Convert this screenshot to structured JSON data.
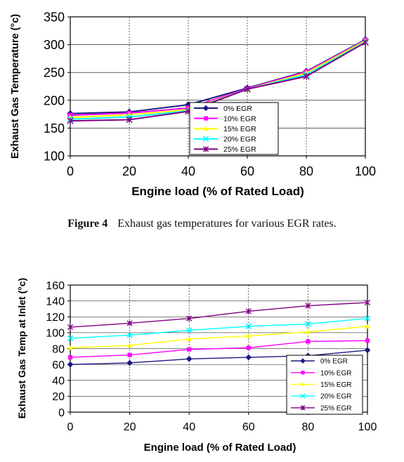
{
  "figure_caption": {
    "label": "Figure 4",
    "text": "Exhaust gas temperatures for various EGR rates."
  },
  "chart_data": [
    {
      "type": "line",
      "xlabel": "Engine load (% of Rated Load)",
      "ylabel": "Exhaust Gas Temperature (°c)",
      "xlim": [
        0,
        100
      ],
      "ylim": [
        100,
        350
      ],
      "xticks": [
        0,
        20,
        40,
        60,
        80,
        100
      ],
      "yticks": [
        100,
        150,
        200,
        250,
        300,
        350
      ],
      "grid": true,
      "legend_position": "center-right",
      "x": [
        0,
        20,
        40,
        60,
        80,
        100
      ],
      "series": [
        {
          "name": "0% EGR",
          "values": [
            176,
            179,
            192,
            222,
            252,
            309
          ],
          "color": "#1a1a80",
          "marker": "diamond"
        },
        {
          "name": "10% EGR",
          "values": [
            173,
            177,
            186,
            221,
            251,
            308
          ],
          "color": "#ff00ff",
          "marker": "square"
        },
        {
          "name": "15% EGR",
          "values": [
            169,
            174,
            183,
            220,
            249,
            307
          ],
          "color": "#ffff00",
          "marker": "triangle"
        },
        {
          "name": "20% EGR",
          "values": [
            166,
            170,
            181,
            220,
            246,
            305
          ],
          "color": "#00ffff",
          "marker": "x"
        },
        {
          "name": "25% EGR",
          "values": [
            163,
            165,
            180,
            220,
            243,
            304
          ],
          "color": "#800080",
          "marker": "star"
        }
      ]
    },
    {
      "type": "line",
      "xlabel": "Engine load (% of Rated Load)",
      "ylabel": "Exhaust Gas Temp at Inlet (°c)",
      "xlim": [
        0,
        100
      ],
      "ylim": [
        0,
        160
      ],
      "xticks": [
        0,
        20,
        40,
        60,
        80,
        100
      ],
      "yticks": [
        0,
        20,
        40,
        60,
        80,
        100,
        120,
        140,
        160
      ],
      "grid": true,
      "legend_position": "bottom-right",
      "x": [
        0,
        20,
        40,
        60,
        80,
        100
      ],
      "series": [
        {
          "name": "0% EGR",
          "values": [
            60,
            62,
            67,
            69,
            71,
            78
          ],
          "color": "#1a1a80",
          "marker": "diamond"
        },
        {
          "name": "10% EGR",
          "values": [
            69,
            72,
            79,
            81,
            89,
            90
          ],
          "color": "#ff00ff",
          "marker": "square"
        },
        {
          "name": "15% EGR",
          "values": [
            81,
            84,
            92,
            96,
            101,
            108
          ],
          "color": "#ffff00",
          "marker": "triangle"
        },
        {
          "name": "20% EGR",
          "values": [
            93,
            97,
            103,
            108,
            111,
            118
          ],
          "color": "#00ffff",
          "marker": "x"
        },
        {
          "name": "25% EGR",
          "values": [
            107,
            112,
            118,
            127,
            134,
            138
          ],
          "color": "#800080",
          "marker": "star"
        }
      ]
    }
  ]
}
